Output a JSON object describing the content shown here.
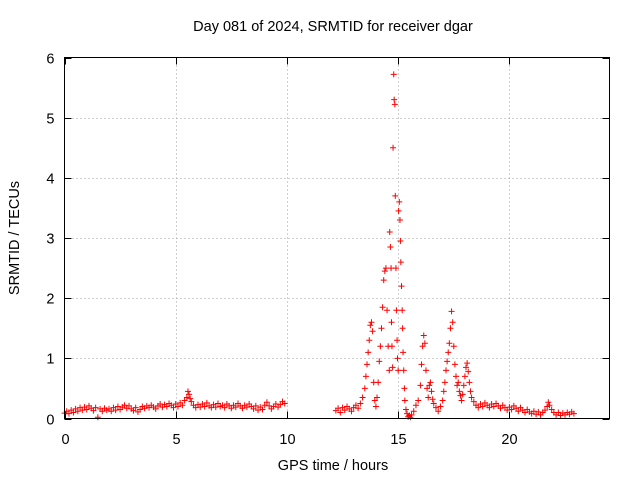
{
  "chart_data": {
    "type": "scatter",
    "title": "Day 081 of 2024, SRMTID for receiver dgar",
    "xlabel": "GPS time / hours",
    "ylabel": "SRMTID / TECUs",
    "xlim": [
      0,
      24.5
    ],
    "ylim": [
      0,
      6
    ],
    "xticks": [
      0,
      5,
      10,
      15,
      20
    ],
    "yticks": [
      0,
      1,
      2,
      3,
      4,
      5,
      6
    ],
    "grid": true,
    "marker": "+",
    "series": [
      {
        "name": "SRMTID",
        "color": "#ff0000",
        "points": [
          [
            0.0,
            0.09
          ],
          [
            0.1,
            0.12
          ],
          [
            0.2,
            0.08
          ],
          [
            0.3,
            0.14
          ],
          [
            0.4,
            0.1
          ],
          [
            0.5,
            0.16
          ],
          [
            0.6,
            0.12
          ],
          [
            0.7,
            0.18
          ],
          [
            0.8,
            0.14
          ],
          [
            0.9,
            0.19
          ],
          [
            1.0,
            0.15
          ],
          [
            1.1,
            0.21
          ],
          [
            1.2,
            0.17
          ],
          [
            1.3,
            0.13
          ],
          [
            1.4,
            0.18
          ],
          [
            1.5,
            0.02
          ],
          [
            1.6,
            0.16
          ],
          [
            1.7,
            0.12
          ],
          [
            1.8,
            0.17
          ],
          [
            1.9,
            0.14
          ],
          [
            2.0,
            0.16
          ],
          [
            2.1,
            0.12
          ],
          [
            2.2,
            0.18
          ],
          [
            2.3,
            0.14
          ],
          [
            2.4,
            0.2
          ],
          [
            2.5,
            0.15
          ],
          [
            2.6,
            0.19
          ],
          [
            2.7,
            0.22
          ],
          [
            2.8,
            0.17
          ],
          [
            2.9,
            0.21
          ],
          [
            3.0,
            0.16
          ],
          [
            3.1,
            0.13
          ],
          [
            3.2,
            0.18
          ],
          [
            3.3,
            0.11
          ],
          [
            3.4,
            0.15
          ],
          [
            3.5,
            0.2
          ],
          [
            3.6,
            0.17
          ],
          [
            3.7,
            0.21
          ],
          [
            3.8,
            0.18
          ],
          [
            3.9,
            0.22
          ],
          [
            4.0,
            0.19
          ],
          [
            4.1,
            0.16
          ],
          [
            4.2,
            0.21
          ],
          [
            4.3,
            0.24
          ],
          [
            4.4,
            0.19
          ],
          [
            4.5,
            0.23
          ],
          [
            4.6,
            0.2
          ],
          [
            4.7,
            0.25
          ],
          [
            4.8,
            0.22
          ],
          [
            4.9,
            0.18
          ],
          [
            5.0,
            0.24
          ],
          [
            5.1,
            0.2
          ],
          [
            5.2,
            0.26
          ],
          [
            5.3,
            0.22
          ],
          [
            5.4,
            0.3
          ],
          [
            5.5,
            0.35
          ],
          [
            5.55,
            0.45
          ],
          [
            5.6,
            0.4
          ],
          [
            5.65,
            0.33
          ],
          [
            5.7,
            0.28
          ],
          [
            5.8,
            0.22
          ],
          [
            5.9,
            0.18
          ],
          [
            6.0,
            0.23
          ],
          [
            6.1,
            0.19
          ],
          [
            6.2,
            0.24
          ],
          [
            6.3,
            0.2
          ],
          [
            6.4,
            0.26
          ],
          [
            6.5,
            0.21
          ],
          [
            6.6,
            0.18
          ],
          [
            6.7,
            0.23
          ],
          [
            6.8,
            0.19
          ],
          [
            6.9,
            0.25
          ],
          [
            7.0,
            0.2
          ],
          [
            7.1,
            0.22
          ],
          [
            7.2,
            0.18
          ],
          [
            7.3,
            0.24
          ],
          [
            7.4,
            0.21
          ],
          [
            7.5,
            0.17
          ],
          [
            7.6,
            0.22
          ],
          [
            7.7,
            0.19
          ],
          [
            7.8,
            0.25
          ],
          [
            7.9,
            0.21
          ],
          [
            8.0,
            0.17
          ],
          [
            8.1,
            0.22
          ],
          [
            8.2,
            0.19
          ],
          [
            8.3,
            0.24
          ],
          [
            8.4,
            0.2
          ],
          [
            8.5,
            0.16
          ],
          [
            8.6,
            0.21
          ],
          [
            8.7,
            0.14
          ],
          [
            8.8,
            0.19
          ],
          [
            8.9,
            0.15
          ],
          [
            9.0,
            0.22
          ],
          [
            9.1,
            0.27
          ],
          [
            9.2,
            0.21
          ],
          [
            9.3,
            0.16
          ],
          [
            9.4,
            0.2
          ],
          [
            9.5,
            0.24
          ],
          [
            9.6,
            0.19
          ],
          [
            9.7,
            0.23
          ],
          [
            9.8,
            0.28
          ],
          [
            9.9,
            0.25
          ],
          [
            12.2,
            0.13
          ],
          [
            12.3,
            0.17
          ],
          [
            12.4,
            0.1
          ],
          [
            12.5,
            0.18
          ],
          [
            12.6,
            0.14
          ],
          [
            12.7,
            0.2
          ],
          [
            12.8,
            0.16
          ],
          [
            12.9,
            0.12
          ],
          [
            13.0,
            0.18
          ],
          [
            13.1,
            0.22
          ],
          [
            13.2,
            0.17
          ],
          [
            13.3,
            0.25
          ],
          [
            13.4,
            0.35
          ],
          [
            13.5,
            0.5
          ],
          [
            13.55,
            0.7
          ],
          [
            13.6,
            0.9
          ],
          [
            13.65,
            1.1
          ],
          [
            13.7,
            1.3
          ],
          [
            13.75,
            1.55
          ],
          [
            13.8,
            1.6
          ],
          [
            13.85,
            1.45
          ],
          [
            13.9,
            0.6
          ],
          [
            13.95,
            0.3
          ],
          [
            14.0,
            0.2
          ],
          [
            14.05,
            0.35
          ],
          [
            14.1,
            0.6
          ],
          [
            14.15,
            0.95
          ],
          [
            14.2,
            1.2
          ],
          [
            14.25,
            1.5
          ],
          [
            14.3,
            1.85
          ],
          [
            14.35,
            2.3
          ],
          [
            14.4,
            2.45
          ],
          [
            14.45,
            2.5
          ],
          [
            14.5,
            1.8
          ],
          [
            14.55,
            1.2
          ],
          [
            14.6,
            0.8
          ],
          [
            14.62,
            3.1
          ],
          [
            14.65,
            2.85
          ],
          [
            14.68,
            2.5
          ],
          [
            14.7,
            1.6
          ],
          [
            14.72,
            1.2
          ],
          [
            14.75,
            0.85
          ],
          [
            14.77,
            4.5
          ],
          [
            14.8,
            5.72
          ],
          [
            14.82,
            5.3
          ],
          [
            14.85,
            5.22
          ],
          [
            14.87,
            3.7
          ],
          [
            14.9,
            2.5
          ],
          [
            14.92,
            1.8
          ],
          [
            14.95,
            1.3
          ],
          [
            14.97,
            1.0
          ],
          [
            15.0,
            0.8
          ],
          [
            15.02,
            3.45
          ],
          [
            15.05,
            3.6
          ],
          [
            15.08,
            3.3
          ],
          [
            15.1,
            2.95
          ],
          [
            15.12,
            2.6
          ],
          [
            15.15,
            2.2
          ],
          [
            15.18,
            1.8
          ],
          [
            15.2,
            1.5
          ],
          [
            15.22,
            1.1
          ],
          [
            15.25,
            0.8
          ],
          [
            15.28,
            0.5
          ],
          [
            15.3,
            0.3
          ],
          [
            15.35,
            0.15
          ],
          [
            15.4,
            0.08
          ],
          [
            15.45,
            0.03
          ],
          [
            15.5,
            0.05
          ],
          [
            15.55,
            0.02
          ],
          [
            15.6,
            0.06
          ],
          [
            15.7,
            0.12
          ],
          [
            15.8,
            0.22
          ],
          [
            15.9,
            0.3
          ],
          [
            16.0,
            0.55
          ],
          [
            16.05,
            0.9
          ],
          [
            16.1,
            1.2
          ],
          [
            16.15,
            1.38
          ],
          [
            16.2,
            1.25
          ],
          [
            16.25,
            0.8
          ],
          [
            16.3,
            0.5
          ],
          [
            16.35,
            0.35
          ],
          [
            16.4,
            0.55
          ],
          [
            16.45,
            0.6
          ],
          [
            16.5,
            0.45
          ],
          [
            16.55,
            0.32
          ],
          [
            16.6,
            0.25
          ],
          [
            16.7,
            0.18
          ],
          [
            16.8,
            0.12
          ],
          [
            16.9,
            0.2
          ],
          [
            17.0,
            0.3
          ],
          [
            17.05,
            0.45
          ],
          [
            17.1,
            0.6
          ],
          [
            17.15,
            0.8
          ],
          [
            17.2,
            0.95
          ],
          [
            17.25,
            1.1
          ],
          [
            17.3,
            1.25
          ],
          [
            17.35,
            1.5
          ],
          [
            17.4,
            1.78
          ],
          [
            17.45,
            1.6
          ],
          [
            17.5,
            1.2
          ],
          [
            17.55,
            0.9
          ],
          [
            17.6,
            0.7
          ],
          [
            17.65,
            0.55
          ],
          [
            17.7,
            0.6
          ],
          [
            17.75,
            0.45
          ],
          [
            17.8,
            0.38
          ],
          [
            17.85,
            0.3
          ],
          [
            17.9,
            0.4
          ],
          [
            17.95,
            0.55
          ],
          [
            18.0,
            0.7
          ],
          [
            18.05,
            0.85
          ],
          [
            18.1,
            0.92
          ],
          [
            18.15,
            0.78
          ],
          [
            18.2,
            0.6
          ],
          [
            18.25,
            0.45
          ],
          [
            18.3,
            0.35
          ],
          [
            18.4,
            0.28
          ],
          [
            18.5,
            0.22
          ],
          [
            18.6,
            0.18
          ],
          [
            18.7,
            0.24
          ],
          [
            18.8,
            0.2
          ],
          [
            18.9,
            0.26
          ],
          [
            19.0,
            0.22
          ],
          [
            19.1,
            0.18
          ],
          [
            19.2,
            0.24
          ],
          [
            19.3,
            0.2
          ],
          [
            19.4,
            0.25
          ],
          [
            19.5,
            0.21
          ],
          [
            19.6,
            0.17
          ],
          [
            19.7,
            0.22
          ],
          [
            19.8,
            0.18
          ],
          [
            19.9,
            0.14
          ],
          [
            20.0,
            0.19
          ],
          [
            20.1,
            0.15
          ],
          [
            20.2,
            0.21
          ],
          [
            20.3,
            0.17
          ],
          [
            20.4,
            0.12
          ],
          [
            20.5,
            0.18
          ],
          [
            20.6,
            0.14
          ],
          [
            20.7,
            0.1
          ],
          [
            20.8,
            0.15
          ],
          [
            20.9,
            0.11
          ],
          [
            21.0,
            0.08
          ],
          [
            21.1,
            0.12
          ],
          [
            21.2,
            0.07
          ],
          [
            21.3,
            0.11
          ],
          [
            21.4,
            0.06
          ],
          [
            21.5,
            0.1
          ],
          [
            21.6,
            0.14
          ],
          [
            21.7,
            0.2
          ],
          [
            21.75,
            0.27
          ],
          [
            21.8,
            0.22
          ],
          [
            21.9,
            0.15
          ],
          [
            22.0,
            0.1
          ],
          [
            22.1,
            0.06
          ],
          [
            22.2,
            0.1
          ],
          [
            22.3,
            0.05
          ],
          [
            22.4,
            0.09
          ],
          [
            22.5,
            0.06
          ],
          [
            22.6,
            0.1
          ],
          [
            22.7,
            0.07
          ],
          [
            22.8,
            0.11
          ],
          [
            22.9,
            0.08
          ]
        ]
      }
    ]
  }
}
